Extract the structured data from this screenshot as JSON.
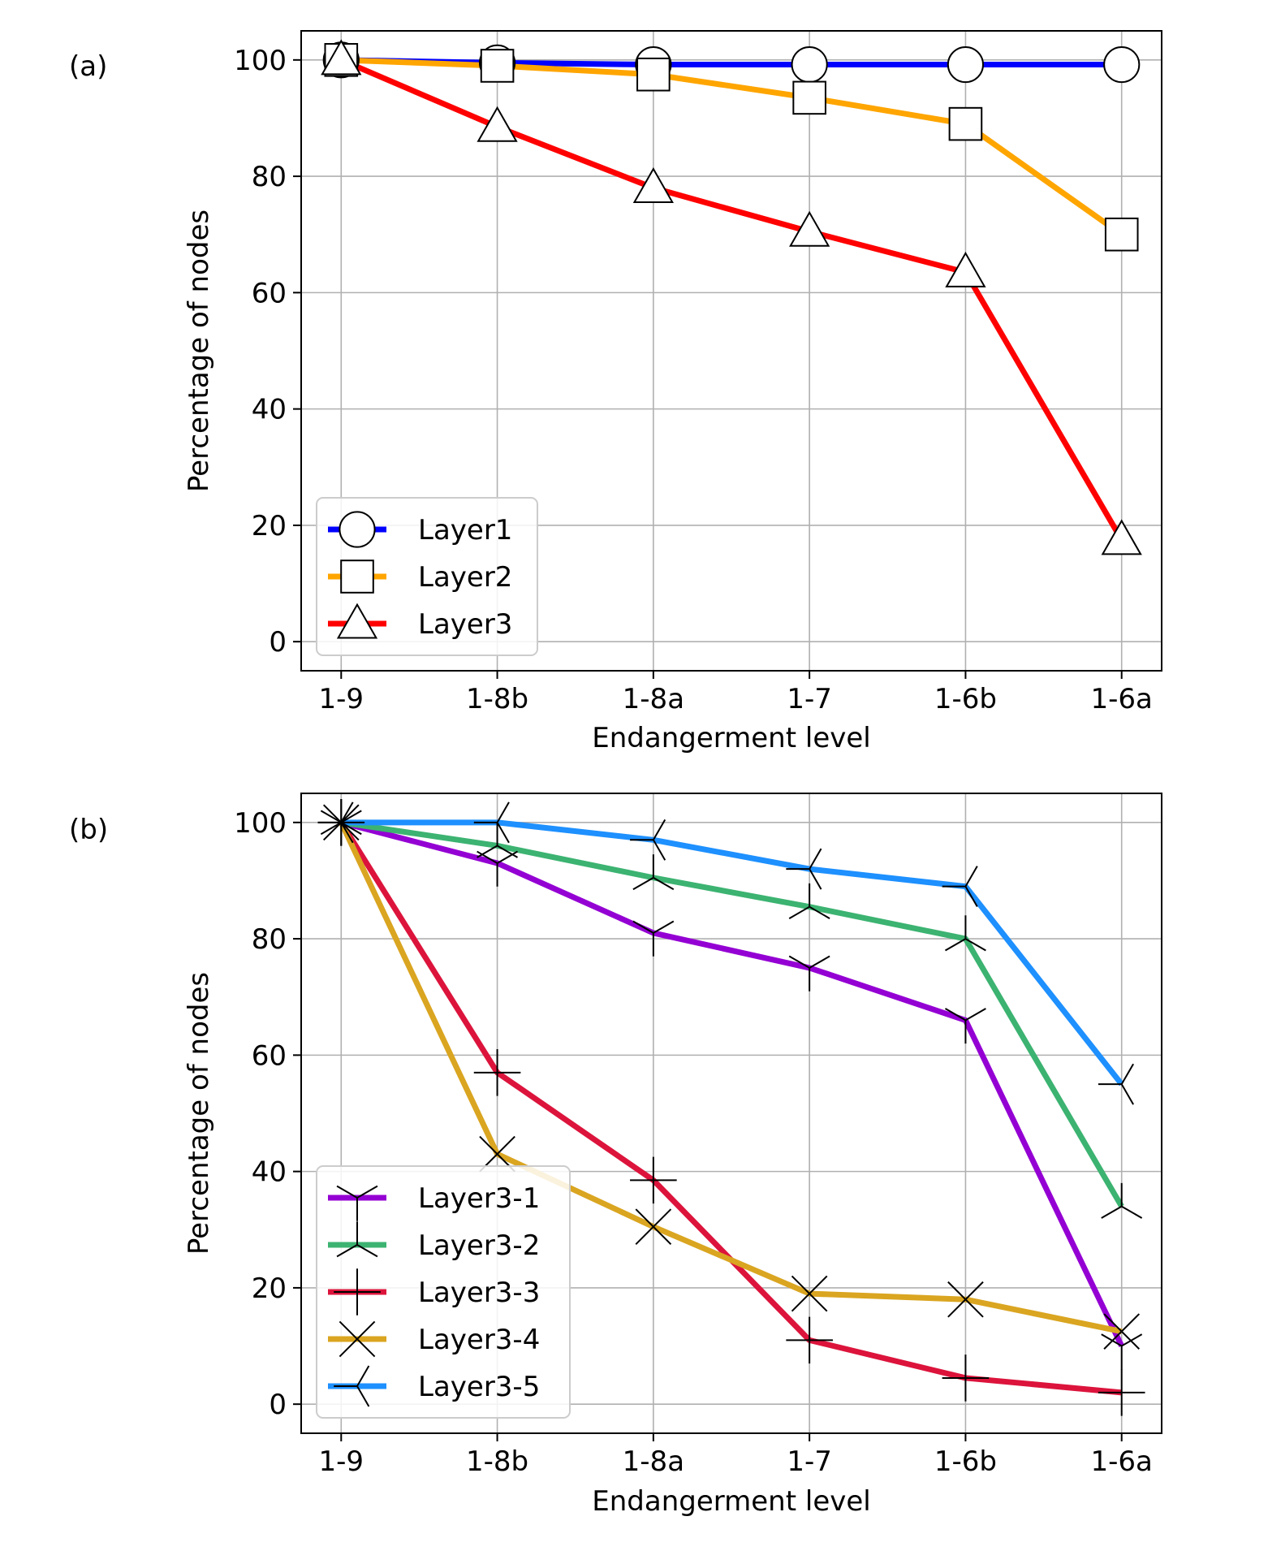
{
  "chart_data": [
    {
      "panel_label": "(a)",
      "type": "line",
      "xlabel": "Endangerment level",
      "ylabel": "Percentage of nodes",
      "categories": [
        "1-9",
        "1-8b",
        "1-8a",
        "1-7",
        "1-6b",
        "1-6a"
      ],
      "ylim": [
        -5,
        105
      ],
      "yticks": [
        0,
        20,
        40,
        60,
        80,
        100
      ],
      "grid": true,
      "legend_position": "lower-left",
      "series": [
        {
          "name": "Layer1",
          "color": "#0000ff",
          "marker": "circle",
          "values": [
            100,
            99.5,
            99.2,
            99.2,
            99.2,
            99.2
          ]
        },
        {
          "name": "Layer2",
          "color": "#ffa500",
          "marker": "square",
          "values": [
            100,
            99.0,
            97.5,
            93.5,
            89.0,
            70.0
          ]
        },
        {
          "name": "Layer3",
          "color": "#ff0000",
          "marker": "triangle",
          "values": [
            100,
            88.5,
            78.0,
            70.5,
            63.5,
            17.5
          ]
        }
      ]
    },
    {
      "panel_label": "(b)",
      "type": "line",
      "xlabel": "Endangerment level",
      "ylabel": "Percentage of nodes",
      "categories": [
        "1-9",
        "1-8b",
        "1-8a",
        "1-7",
        "1-6b",
        "1-6a"
      ],
      "ylim": [
        -5,
        105
      ],
      "yticks": [
        0,
        20,
        40,
        60,
        80,
        100
      ],
      "grid": true,
      "legend_position": "lower-left",
      "series": [
        {
          "name": "Layer3-1",
          "color": "#9400d3",
          "marker": "tri_down",
          "values": [
            100,
            93.0,
            81.0,
            75.0,
            66.0,
            10.0
          ]
        },
        {
          "name": "Layer3-2",
          "color": "#3cb371",
          "marker": "tri_up",
          "values": [
            100,
            96.0,
            90.5,
            85.5,
            80.0,
            34.0
          ]
        },
        {
          "name": "Layer3-3",
          "color": "#dc143c",
          "marker": "plus",
          "values": [
            100,
            57.0,
            38.5,
            11.0,
            4.5,
            2.0
          ]
        },
        {
          "name": "Layer3-4",
          "color": "#daa520",
          "marker": "x",
          "values": [
            100,
            43.0,
            30.5,
            19.0,
            18.0,
            12.5
          ]
        },
        {
          "name": "Layer3-5",
          "color": "#1e90ff",
          "marker": "tri_left",
          "values": [
            100,
            100,
            97.0,
            92.0,
            89.0,
            55.0
          ]
        }
      ]
    }
  ]
}
